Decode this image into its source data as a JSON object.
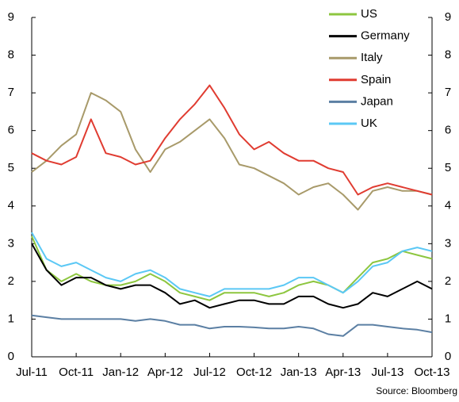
{
  "chart_data": {
    "type": "line",
    "categories": [
      "Jul-11",
      null,
      null,
      "Oct-11",
      null,
      null,
      "Jan-12",
      null,
      null,
      "Apr-12",
      null,
      null,
      "Jul-12",
      null,
      null,
      "Oct-12",
      null,
      null,
      "Jan-13",
      null,
      null,
      "Apr-13",
      null,
      null,
      "Jul-13",
      null,
      null,
      "Oct-13"
    ],
    "series": [
      {
        "name": "US",
        "color": "#8dc63f",
        "values": [
          3.2,
          2.3,
          2.0,
          2.2,
          2.0,
          1.9,
          1.9,
          2.0,
          2.2,
          2.0,
          1.7,
          1.6,
          1.5,
          1.7,
          1.7,
          1.7,
          1.6,
          1.7,
          1.9,
          2.0,
          1.9,
          1.7,
          2.1,
          2.5,
          2.6,
          2.8,
          2.7,
          2.6
        ]
      },
      {
        "name": "Germany",
        "color": "#000000",
        "values": [
          3.0,
          2.3,
          1.9,
          2.1,
          2.1,
          1.9,
          1.8,
          1.9,
          1.9,
          1.7,
          1.4,
          1.5,
          1.3,
          1.4,
          1.5,
          1.5,
          1.4,
          1.4,
          1.6,
          1.6,
          1.4,
          1.3,
          1.4,
          1.7,
          1.6,
          1.8,
          2.0,
          1.8
        ]
      },
      {
        "name": "Italy",
        "color": "#a89a6a",
        "values": [
          4.9,
          5.2,
          5.6,
          5.9,
          7.0,
          6.8,
          6.5,
          5.5,
          4.9,
          5.5,
          5.7,
          6.0,
          6.3,
          5.8,
          5.1,
          5.0,
          4.8,
          4.6,
          4.3,
          4.5,
          4.6,
          4.3,
          3.9,
          4.4,
          4.5,
          4.4,
          4.4,
          4.3
        ]
      },
      {
        "name": "Spain",
        "color": "#e03c31",
        "values": [
          5.4,
          5.2,
          5.1,
          5.3,
          6.3,
          5.4,
          5.3,
          5.1,
          5.2,
          5.8,
          6.3,
          6.7,
          7.2,
          6.6,
          5.9,
          5.5,
          5.7,
          5.4,
          5.2,
          5.2,
          5.0,
          4.9,
          4.3,
          4.5,
          4.6,
          4.5,
          4.4,
          4.3
        ]
      },
      {
        "name": "Japan",
        "color": "#5b7fa3",
        "values": [
          1.1,
          1.05,
          1.0,
          1.0,
          1.0,
          1.0,
          1.0,
          0.95,
          1.0,
          0.95,
          0.85,
          0.85,
          0.75,
          0.8,
          0.8,
          0.78,
          0.75,
          0.75,
          0.8,
          0.75,
          0.6,
          0.55,
          0.85,
          0.85,
          0.8,
          0.75,
          0.72,
          0.65
        ]
      },
      {
        "name": "UK",
        "color": "#5bc8f5",
        "values": [
          3.3,
          2.6,
          2.4,
          2.5,
          2.3,
          2.1,
          2.0,
          2.2,
          2.3,
          2.1,
          1.8,
          1.7,
          1.6,
          1.8,
          1.8,
          1.8,
          1.8,
          1.9,
          2.1,
          2.1,
          1.9,
          1.7,
          2.0,
          2.4,
          2.5,
          2.8,
          2.9,
          2.8
        ]
      }
    ],
    "ylim": [
      0,
      9
    ],
    "yticks": [
      0,
      1,
      2,
      3,
      4,
      5,
      6,
      7,
      8,
      9
    ],
    "y2lim": [
      0,
      9
    ],
    "y2ticks": [
      0,
      1,
      2,
      3,
      4,
      5,
      6,
      7,
      8,
      9
    ],
    "legend": "upper right",
    "grid": false,
    "source": "Source: Bloomberg"
  }
}
